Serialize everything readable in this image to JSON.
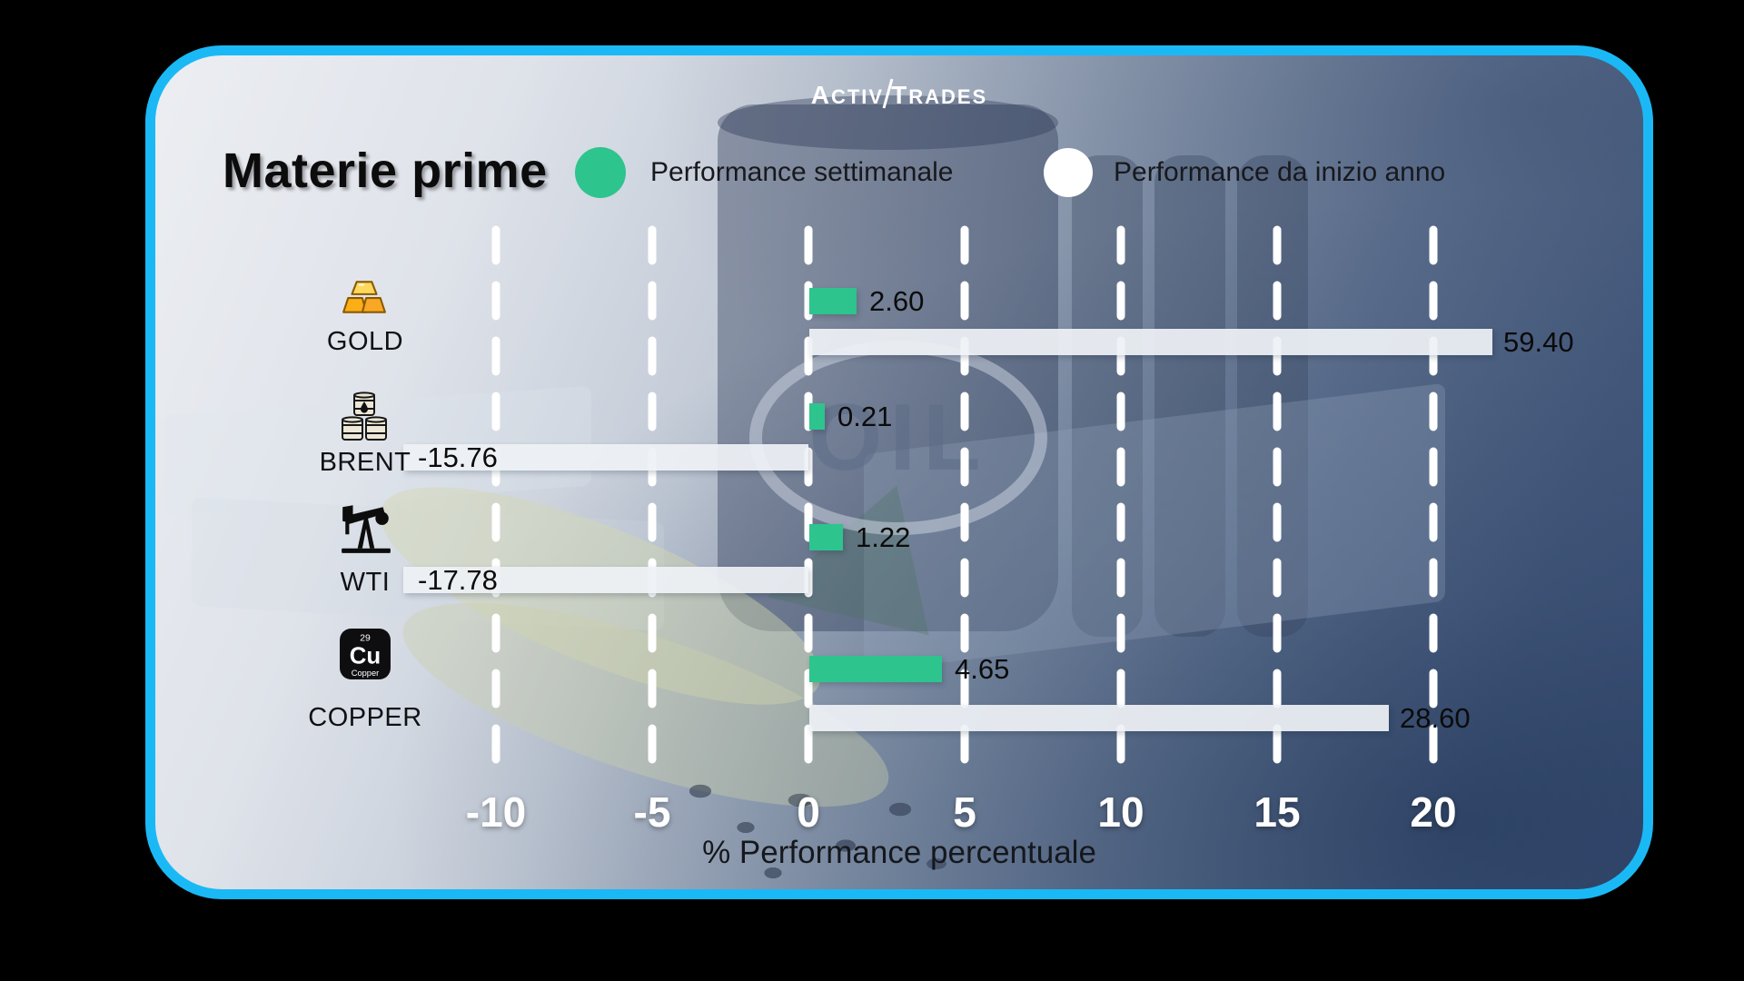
{
  "brand": {
    "part1": "A",
    "part2": "CTIV",
    "part3": "T",
    "part4": "RADES"
  },
  "header": {
    "title": "Materie prime"
  },
  "legend": [
    {
      "label": "Performance settimanale",
      "color": "#2dc48e"
    },
    {
      "label": "Performance da inizio anno",
      "color": "#ffffff"
    }
  ],
  "background": {
    "watermark": "OIL"
  },
  "copper_tile": {
    "number": "29",
    "symbol": "Cu",
    "name": "Copper"
  },
  "chart_data": {
    "type": "bar",
    "orientation": "horizontal",
    "title": "Materie prime",
    "categories": [
      "GOLD",
      "BRENT",
      "WTI",
      "COPPER"
    ],
    "icons": [
      "gold-bars",
      "oil-barrels",
      "pump-jack",
      "copper-element"
    ],
    "series": [
      {
        "name": "Performance settimanale",
        "color": "#2dc48e",
        "values": [
          2.6,
          0.21,
          1.22,
          4.65
        ]
      },
      {
        "name": "Performance da inizio anno",
        "color": "#ffffff",
        "values": [
          59.4,
          -15.76,
          -17.78,
          28.6
        ]
      }
    ],
    "value_labels": [
      [
        "2.60",
        "0.21",
        "1.22",
        "4.65"
      ],
      [
        "59.40",
        "-15.76",
        "-17.78",
        "28.60"
      ]
    ],
    "x_ticks": [
      -10,
      -5,
      0,
      5,
      10,
      15,
      20
    ],
    "xlim": [
      -13,
      22
    ],
    "xlabel": "% Performance percentuale",
    "grid": "dashed-vertical-white",
    "legend_position": "top"
  }
}
